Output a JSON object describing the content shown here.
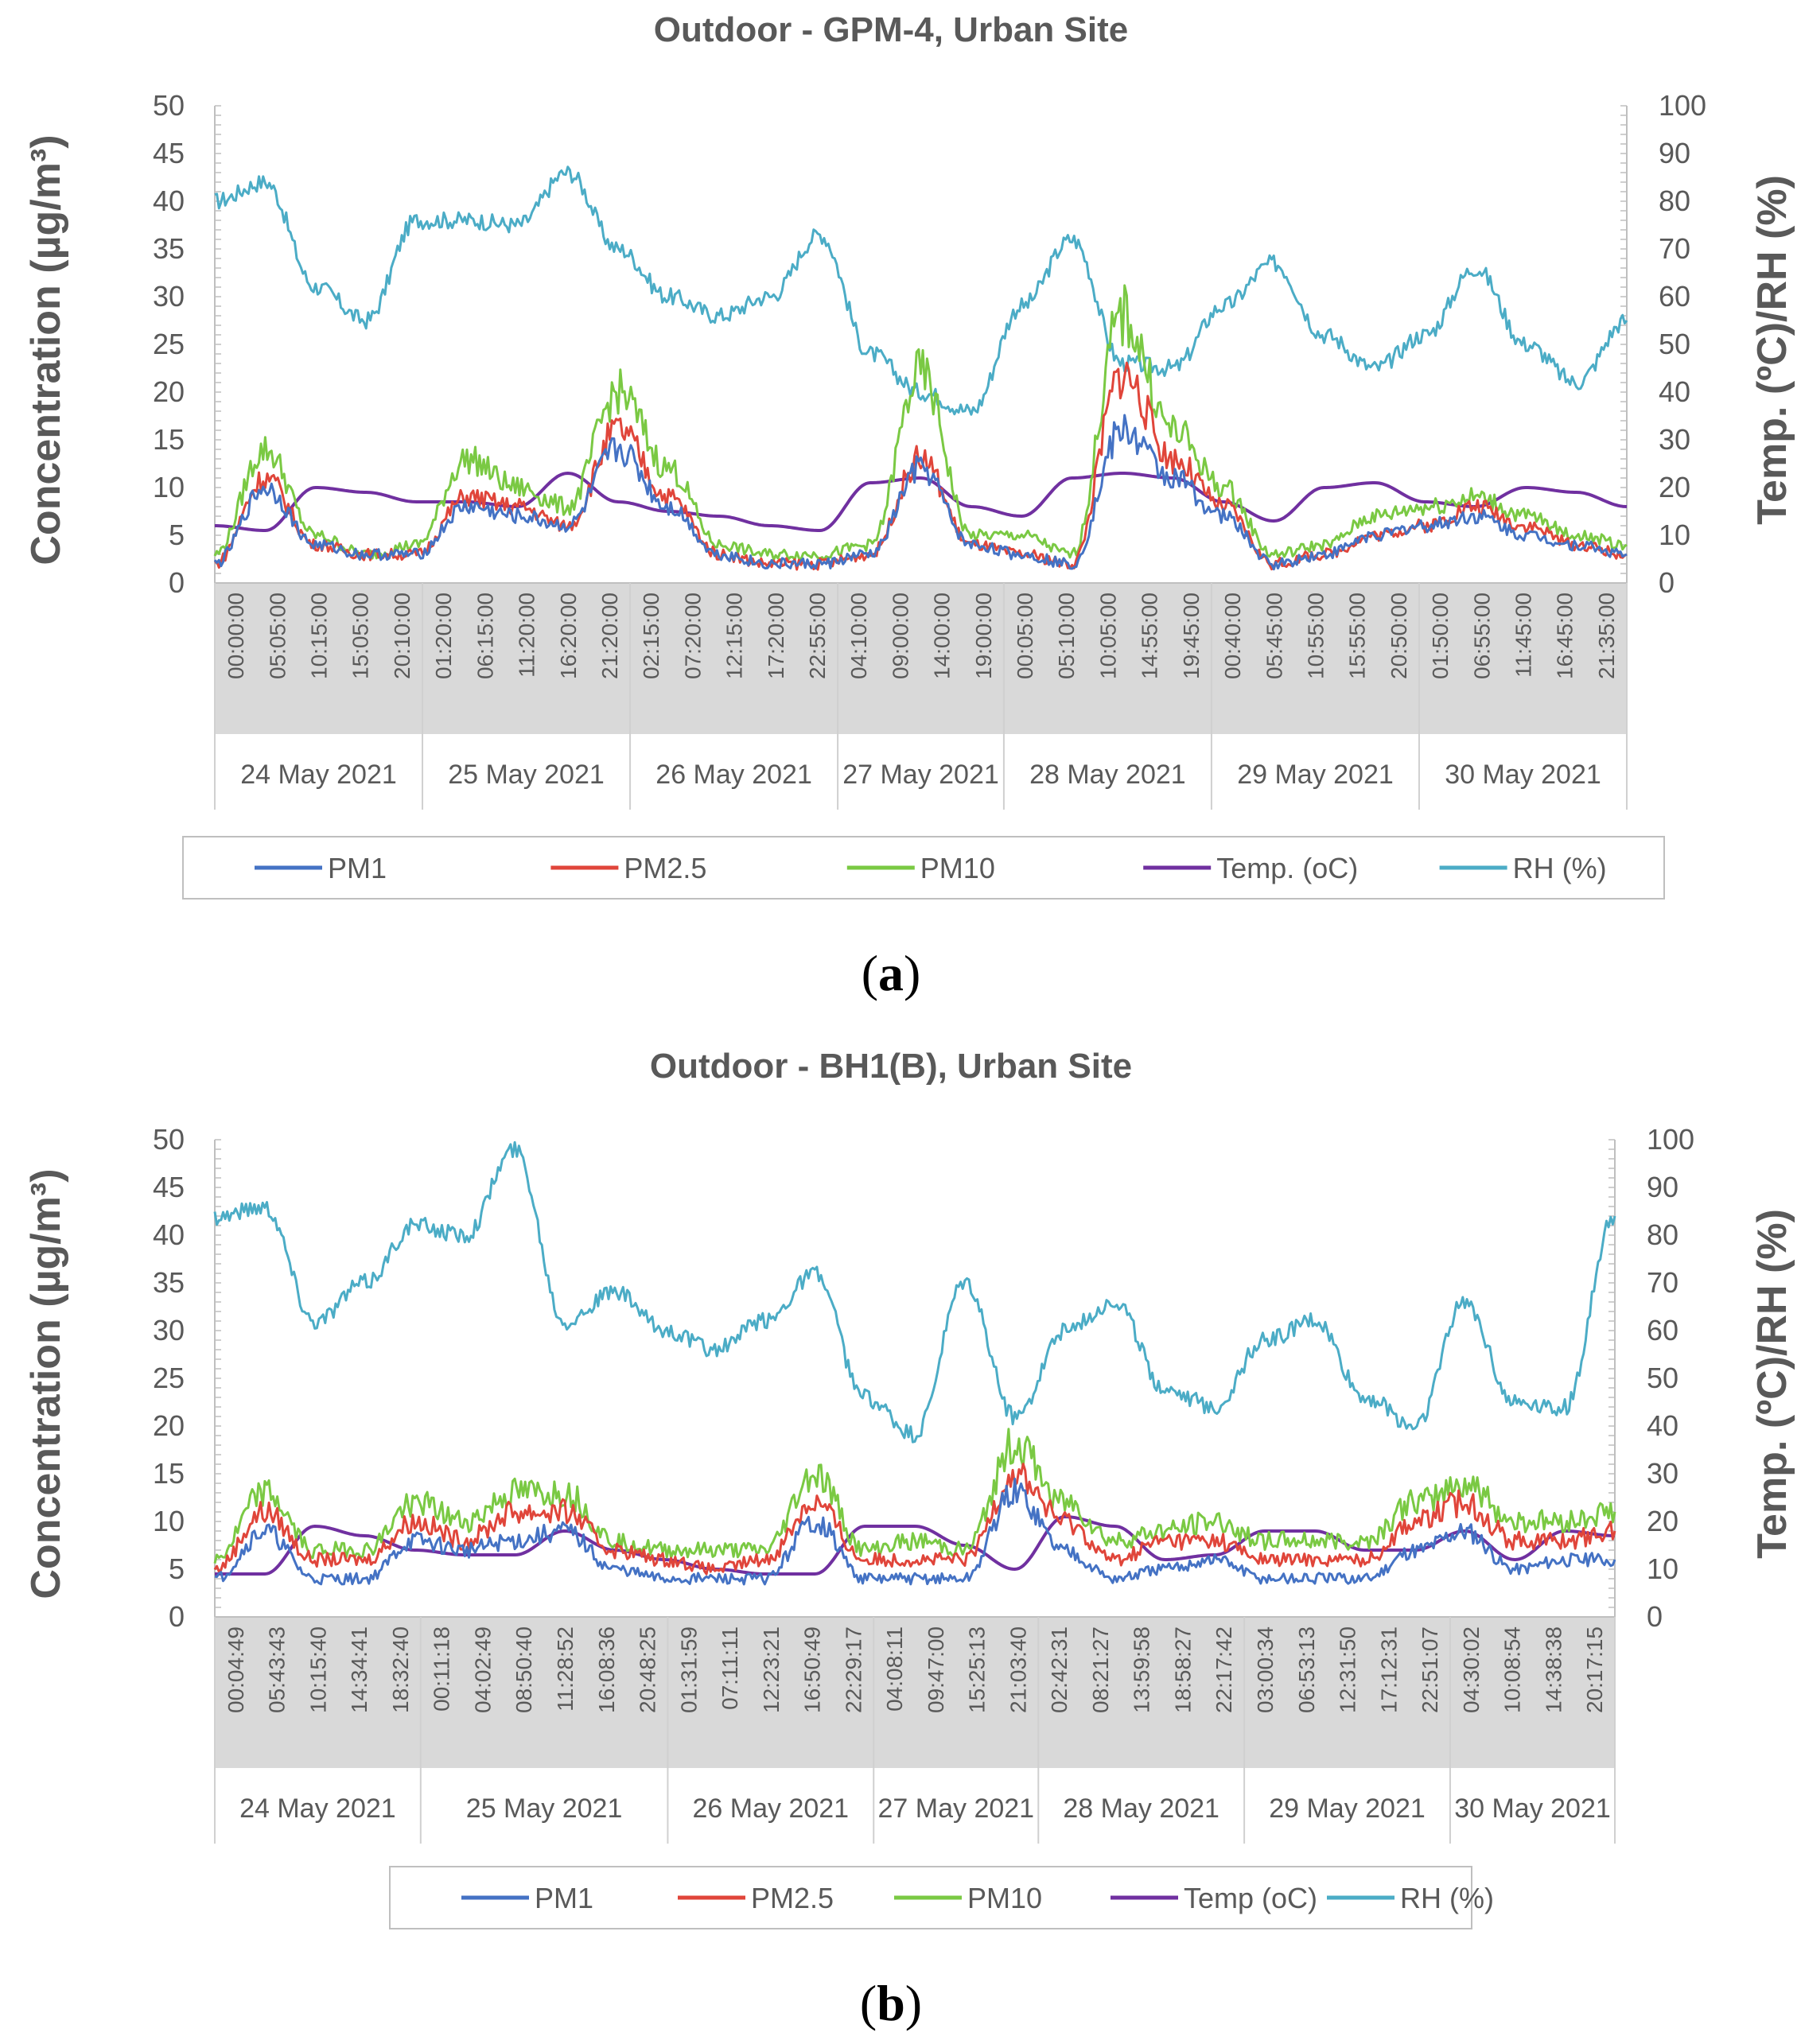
{
  "panel_labels": [
    "a",
    "b"
  ],
  "colors": {
    "PM1": "#4472C4",
    "PM2.5": "#E0453A",
    "PM10": "#7AC943",
    "Temp": "#7030A0",
    "RH": "#4BACC6",
    "axis_band": "#D9D9D9",
    "text": "#595959"
  },
  "chart_data": [
    {
      "type": "line",
      "title": "Outdoor - GPM-4, Urban Site",
      "ylabel": "Concentration (µg/m³)",
      "y2label": "Temp. (ºC)/RH (%)",
      "ylim": [
        0,
        50
      ],
      "y2lim": [
        0,
        100
      ],
      "yticks": [
        0,
        5,
        10,
        15,
        20,
        25,
        30,
        35,
        40,
        45,
        50
      ],
      "y2ticks": [
        0,
        10,
        20,
        30,
        40,
        50,
        60,
        70,
        80,
        90,
        100
      ],
      "time_labels": [
        "00:00:00",
        "05:05:00",
        "10:15:00",
        "15:05:00",
        "20:10:00",
        "01:20:00",
        "06:15:00",
        "11:20:00",
        "16:20:00",
        "21:20:00",
        "02:15:00",
        "07:20:00",
        "12:15:00",
        "17:20:00",
        "22:55:00",
        "04:10:00",
        "09:00:00",
        "14:00:00",
        "19:00:00",
        "00:05:00",
        "05:10:00",
        "10:05:00",
        "14:55:00",
        "19:45:00",
        "00:40:00",
        "05:45:00",
        "10:55:00",
        "15:55:00",
        "20:50:00",
        "01:50:00",
        "06:55:00",
        "11:45:00",
        "16:45:00",
        "21:35:00"
      ],
      "days": [
        "24 May 2021",
        "25 May 2021",
        "26 May 2021",
        "27 May 2021",
        "28 May 2021",
        "29 May 2021",
        "30 May 2021"
      ],
      "day_boundaries": [
        0,
        5,
        10,
        15,
        19,
        24,
        29,
        34
      ],
      "x_hours": [
        0,
        6,
        12,
        18,
        24,
        30,
        36,
        42,
        48,
        54,
        60,
        66,
        72,
        78,
        84,
        90,
        96,
        102,
        108,
        114,
        120,
        126,
        132,
        138,
        144,
        150,
        156,
        162,
        168
      ],
      "series": [
        {
          "name": "PM1",
          "axis": "left",
          "values": [
            2,
            10,
            4,
            3,
            3,
            8,
            7,
            6,
            14,
            8,
            3,
            2,
            2,
            3,
            12,
            4,
            3,
            2,
            16,
            11,
            7,
            2,
            3,
            5,
            6,
            7,
            5,
            4,
            3
          ]
        },
        {
          "name": "PM2.5",
          "axis": "left",
          "values": [
            2,
            11,
            4,
            3,
            3,
            9,
            8,
            6,
            16,
            9,
            3,
            2,
            2,
            3,
            13,
            4,
            3,
            2,
            22,
            13,
            8,
            2,
            3,
            5,
            6,
            8,
            6,
            4,
            3
          ]
        },
        {
          "name": "PM10",
          "axis": "left",
          "values": [
            3,
            14,
            5,
            3,
            4,
            13,
            10,
            8,
            20,
            12,
            4,
            3,
            3,
            4,
            22,
            5,
            5,
            3,
            28,
            16,
            10,
            3,
            4,
            7,
            8,
            9,
            7,
            5,
            4
          ]
        },
        {
          "name": "Temp. (oC)",
          "axis": "right",
          "values": [
            12,
            11,
            20,
            19,
            17,
            17,
            16,
            23,
            17,
            15,
            14,
            12,
            11,
            21,
            22,
            16,
            14,
            22,
            23,
            22,
            17,
            13,
            20,
            21,
            17,
            16,
            20,
            19,
            16
          ]
        },
        {
          "name": "RH (%)",
          "axis": "right",
          "values": [
            80,
            84,
            62,
            55,
            76,
            76,
            75,
            86,
            70,
            60,
            56,
            60,
            73,
            48,
            40,
            36,
            58,
            72,
            46,
            45,
            58,
            67,
            52,
            45,
            52,
            66,
            50,
            42,
            55
          ]
        }
      ]
    },
    {
      "type": "line",
      "title": "Outdoor - BH1(B), Urban Site",
      "ylabel": "Concentration (µg/m³)",
      "y2label": "Temp. (ºC)/RH (%)",
      "ylim": [
        0,
        50
      ],
      "y2lim": [
        0,
        100
      ],
      "yticks": [
        0,
        5,
        10,
        15,
        20,
        25,
        30,
        35,
        40,
        45,
        50
      ],
      "y2ticks": [
        0,
        10,
        20,
        30,
        40,
        50,
        60,
        70,
        80,
        90,
        100
      ],
      "time_labels": [
        "00:04:49",
        "05:43:43",
        "10:15:40",
        "14:34:41",
        "18:32:40",
        "00:11:18",
        "04:02:49",
        "08:50:40",
        "11:28:52",
        "16:08:36",
        "20:48:25",
        "01:31:59",
        "07:11:11",
        "12:23:21",
        "16:50:49",
        "22:29:17",
        "04:08:11",
        "09:47:00",
        "15:25:13",
        "21:03:40",
        "02:42:31",
        "08:21:27",
        "13:59:58",
        "18:58:27",
        "22:17:42",
        "03:00:34",
        "06:53:13",
        "12:31:50",
        "17:12:31",
        "22:51:07",
        "04:30:02",
        "10:08:54",
        "14:38:38",
        "20:17:15"
      ],
      "days": [
        "24 May 2021",
        "25 May 2021",
        "26 May 2021",
        "27 May 2021",
        "28 May 2021",
        "29 May 2021",
        "30 May 2021"
      ],
      "day_boundaries": [
        0,
        5,
        11,
        16,
        20,
        25,
        30,
        34
      ],
      "x_hours": [
        0,
        6,
        12,
        18,
        24,
        30,
        36,
        42,
        48,
        54,
        60,
        66,
        72,
        78,
        84,
        90,
        96,
        102,
        108,
        114,
        120,
        126,
        132,
        138,
        144,
        150,
        156,
        162,
        168
      ],
      "series": [
        {
          "name": "PM1",
          "axis": "left",
          "values": [
            4,
            9,
            4,
            4,
            8,
            7,
            8,
            9,
            5,
            4,
            4,
            4,
            10,
            4,
            4,
            4,
            13,
            7,
            4,
            5,
            6,
            4,
            4,
            4,
            7,
            9,
            5,
            6,
            6
          ]
        },
        {
          "name": "PM2.5",
          "axis": "left",
          "values": [
            5,
            11,
            6,
            6,
            10,
            8,
            11,
            11,
            7,
            6,
            5,
            6,
            12,
            6,
            6,
            6,
            15,
            10,
            6,
            8,
            8,
            6,
            6,
            6,
            10,
            12,
            8,
            8,
            9
          ]
        },
        {
          "name": "PM10",
          "axis": "left",
          "values": [
            6,
            13,
            7,
            7,
            12,
            10,
            13,
            13,
            8,
            7,
            7,
            7,
            15,
            7,
            8,
            7,
            18,
            12,
            8,
            9,
            10,
            8,
            8,
            8,
            12,
            14,
            10,
            10,
            11
          ]
        },
        {
          "name": "Temp (oC)",
          "axis": "right",
          "values": [
            9,
            9,
            19,
            17,
            14,
            13,
            13,
            18,
            14,
            12,
            10,
            9,
            9,
            19,
            19,
            15,
            10,
            21,
            19,
            12,
            13,
            18,
            18,
            14,
            14,
            18,
            12,
            18,
            17
          ]
        },
        {
          "name": "RH (%)",
          "axis": "right",
          "values": [
            84,
            86,
            62,
            70,
            82,
            80,
            98,
            62,
            68,
            60,
            56,
            62,
            72,
            46,
            38,
            70,
            42,
            60,
            66,
            48,
            44,
            58,
            62,
            46,
            40,
            66,
            45,
            44,
            84
          ]
        }
      ]
    }
  ]
}
